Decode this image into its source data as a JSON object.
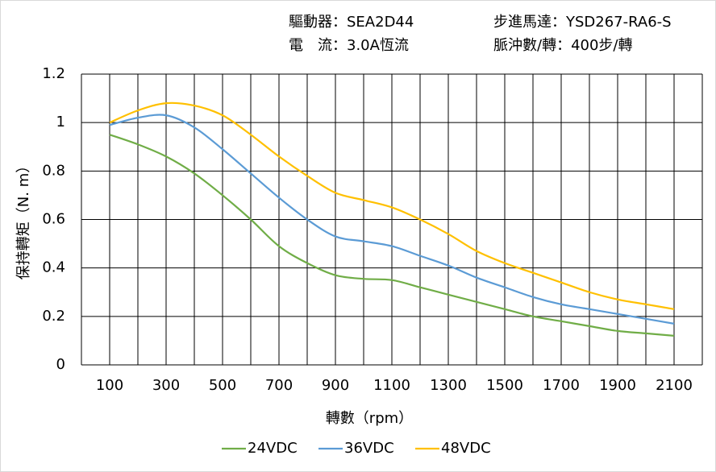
{
  "chart_data": {
    "type": "line",
    "annotations": [
      "驅動器：SEA2D44",
      "步進馬達：YSD267-RA6-S",
      "電　流：3.0A恆流",
      "脈沖數/轉：400步/轉"
    ],
    "x_label": "轉數（rpm）",
    "y_label": "保持轉矩（N. m）",
    "x": [
      100,
      200,
      300,
      400,
      500,
      600,
      700,
      800,
      900,
      1000,
      1100,
      1200,
      1300,
      1400,
      1500,
      1600,
      1700,
      1800,
      1900,
      2000,
      2100
    ],
    "series": [
      {
        "name": "24VDC",
        "color": "#70ad47",
        "values": [
          0.95,
          0.91,
          0.86,
          0.79,
          0.7,
          0.6,
          0.49,
          0.42,
          0.37,
          0.355,
          0.35,
          0.32,
          0.29,
          0.26,
          0.23,
          0.2,
          0.18,
          0.16,
          0.14,
          0.13,
          0.12
        ]
      },
      {
        "name": "36VDC",
        "color": "#5b9bd5",
        "values": [
          0.99,
          1.02,
          1.03,
          0.98,
          0.89,
          0.79,
          0.69,
          0.6,
          0.53,
          0.51,
          0.49,
          0.45,
          0.41,
          0.36,
          0.32,
          0.28,
          0.25,
          0.23,
          0.21,
          0.19,
          0.17
        ]
      },
      {
        "name": "48VDC",
        "color": "#ffc000",
        "values": [
          1.0,
          1.05,
          1.08,
          1.07,
          1.03,
          0.95,
          0.86,
          0.78,
          0.71,
          0.68,
          0.65,
          0.6,
          0.54,
          0.47,
          0.42,
          0.38,
          0.34,
          0.3,
          0.27,
          0.25,
          0.23
        ]
      }
    ],
    "xlim": [
      0,
      2200
    ],
    "xticks": [
      100,
      300,
      500,
      700,
      900,
      1100,
      1300,
      1500,
      1700,
      1900,
      2100
    ],
    "xgrid": [
      0,
      100,
      200,
      300,
      400,
      500,
      600,
      700,
      800,
      900,
      1000,
      1100,
      1200,
      1300,
      1400,
      1500,
      1600,
      1700,
      1800,
      1900,
      2000,
      2100,
      2200
    ],
    "ylim": [
      0,
      1.2
    ],
    "yticks": [
      0,
      0.2,
      0.4,
      0.6,
      0.8,
      1,
      1.2
    ],
    "grid": true,
    "legend": "bottom"
  }
}
